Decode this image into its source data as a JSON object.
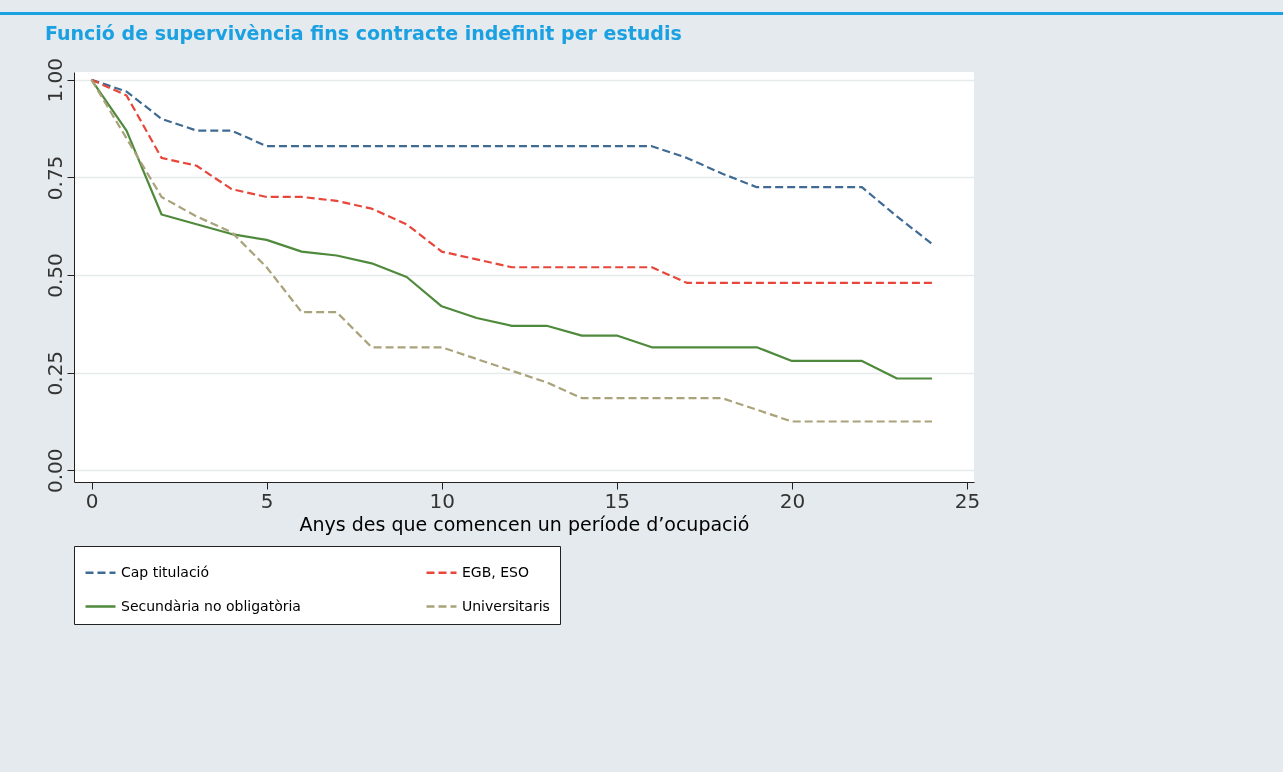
{
  "chart_data": {
    "type": "line",
    "title": "Funció de supervivència fins contracte indefinit per estudis",
    "xlabel": "Anys des que comencen un període d’ocupació",
    "x": [
      0,
      1,
      2,
      3,
      4,
      5,
      6,
      7,
      8,
      9,
      10,
      11,
      12,
      13,
      14,
      15,
      16,
      17,
      18,
      19,
      20,
      21,
      22,
      23,
      24
    ],
    "series": [
      {
        "name": "Cap titulació",
        "color": "#3e6a94",
        "line_style": "dashed",
        "values": [
          1.0,
          0.97,
          0.9,
          0.87,
          0.87,
          0.83,
          0.83,
          0.83,
          0.83,
          0.83,
          0.83,
          0.83,
          0.83,
          0.83,
          0.83,
          0.83,
          0.83,
          0.8,
          0.76,
          0.725,
          0.725,
          0.725,
          0.725,
          0.65,
          0.58
        ]
      },
      {
        "name": "EGB, ESO",
        "color": "#e8463a",
        "line_style": "dashed",
        "values": [
          1.0,
          0.96,
          0.8,
          0.78,
          0.72,
          0.7,
          0.7,
          0.69,
          0.67,
          0.63,
          0.56,
          0.54,
          0.52,
          0.52,
          0.52,
          0.52,
          0.52,
          0.48,
          0.48,
          0.48,
          0.48,
          0.48,
          0.48,
          0.48,
          0.48
        ]
      },
      {
        "name": "Secundària no obligatòria",
        "color": "#4f8a3c",
        "line_style": "solid",
        "values": [
          1.0,
          0.87,
          0.655,
          0.63,
          0.605,
          0.59,
          0.56,
          0.55,
          0.53,
          0.495,
          0.42,
          0.39,
          0.37,
          0.37,
          0.345,
          0.345,
          0.315,
          0.315,
          0.315,
          0.315,
          0.28,
          0.28,
          0.28,
          0.235,
          0.235
        ]
      },
      {
        "name": "Universitaris",
        "color": "#a9a27a",
        "line_style": "dashed",
        "values": [
          1.0,
          0.85,
          0.7,
          0.65,
          0.61,
          0.52,
          0.405,
          0.405,
          0.315,
          0.315,
          0.315,
          0.285,
          0.255,
          0.225,
          0.185,
          0.185,
          0.185,
          0.185,
          0.185,
          0.155,
          0.125,
          0.125,
          0.125,
          0.125,
          0.125
        ]
      }
    ],
    "xlim": [
      -0.5,
      25.2
    ],
    "xticks": [
      0,
      5,
      10,
      15,
      20,
      25
    ],
    "ylim": [
      -0.03,
      1.02
    ],
    "yticks": [
      {
        "value": 0,
        "label": "0.00"
      },
      {
        "value": 0.25,
        "label": "0.25"
      },
      {
        "value": 0.5,
        "label": "0.50"
      },
      {
        "value": 0.75,
        "label": "0.75"
      },
      {
        "value": 1,
        "label": "1.00"
      }
    ],
    "grid": "y",
    "legend": "bottom"
  }
}
